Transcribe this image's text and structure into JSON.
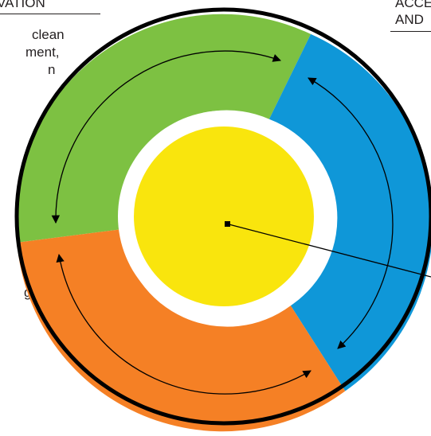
{
  "labels": {
    "top_left": "VATION",
    "top_right_line1": "ACCE",
    "top_right_line2": "AND"
  },
  "left_text": {
    "line1": "clean",
    "line2": "ment,",
    "line3": "n",
    "line4": ",",
    "line5": "g"
  },
  "colors": {
    "ring_outline": "#000000",
    "green_segment": "#7dc142",
    "blue_segment": "#0f97d8",
    "orange_segment": "#f58025",
    "inner_ring": "#ffffff",
    "center_circle": "#f9e50d",
    "arrows": "#000000"
  }
}
